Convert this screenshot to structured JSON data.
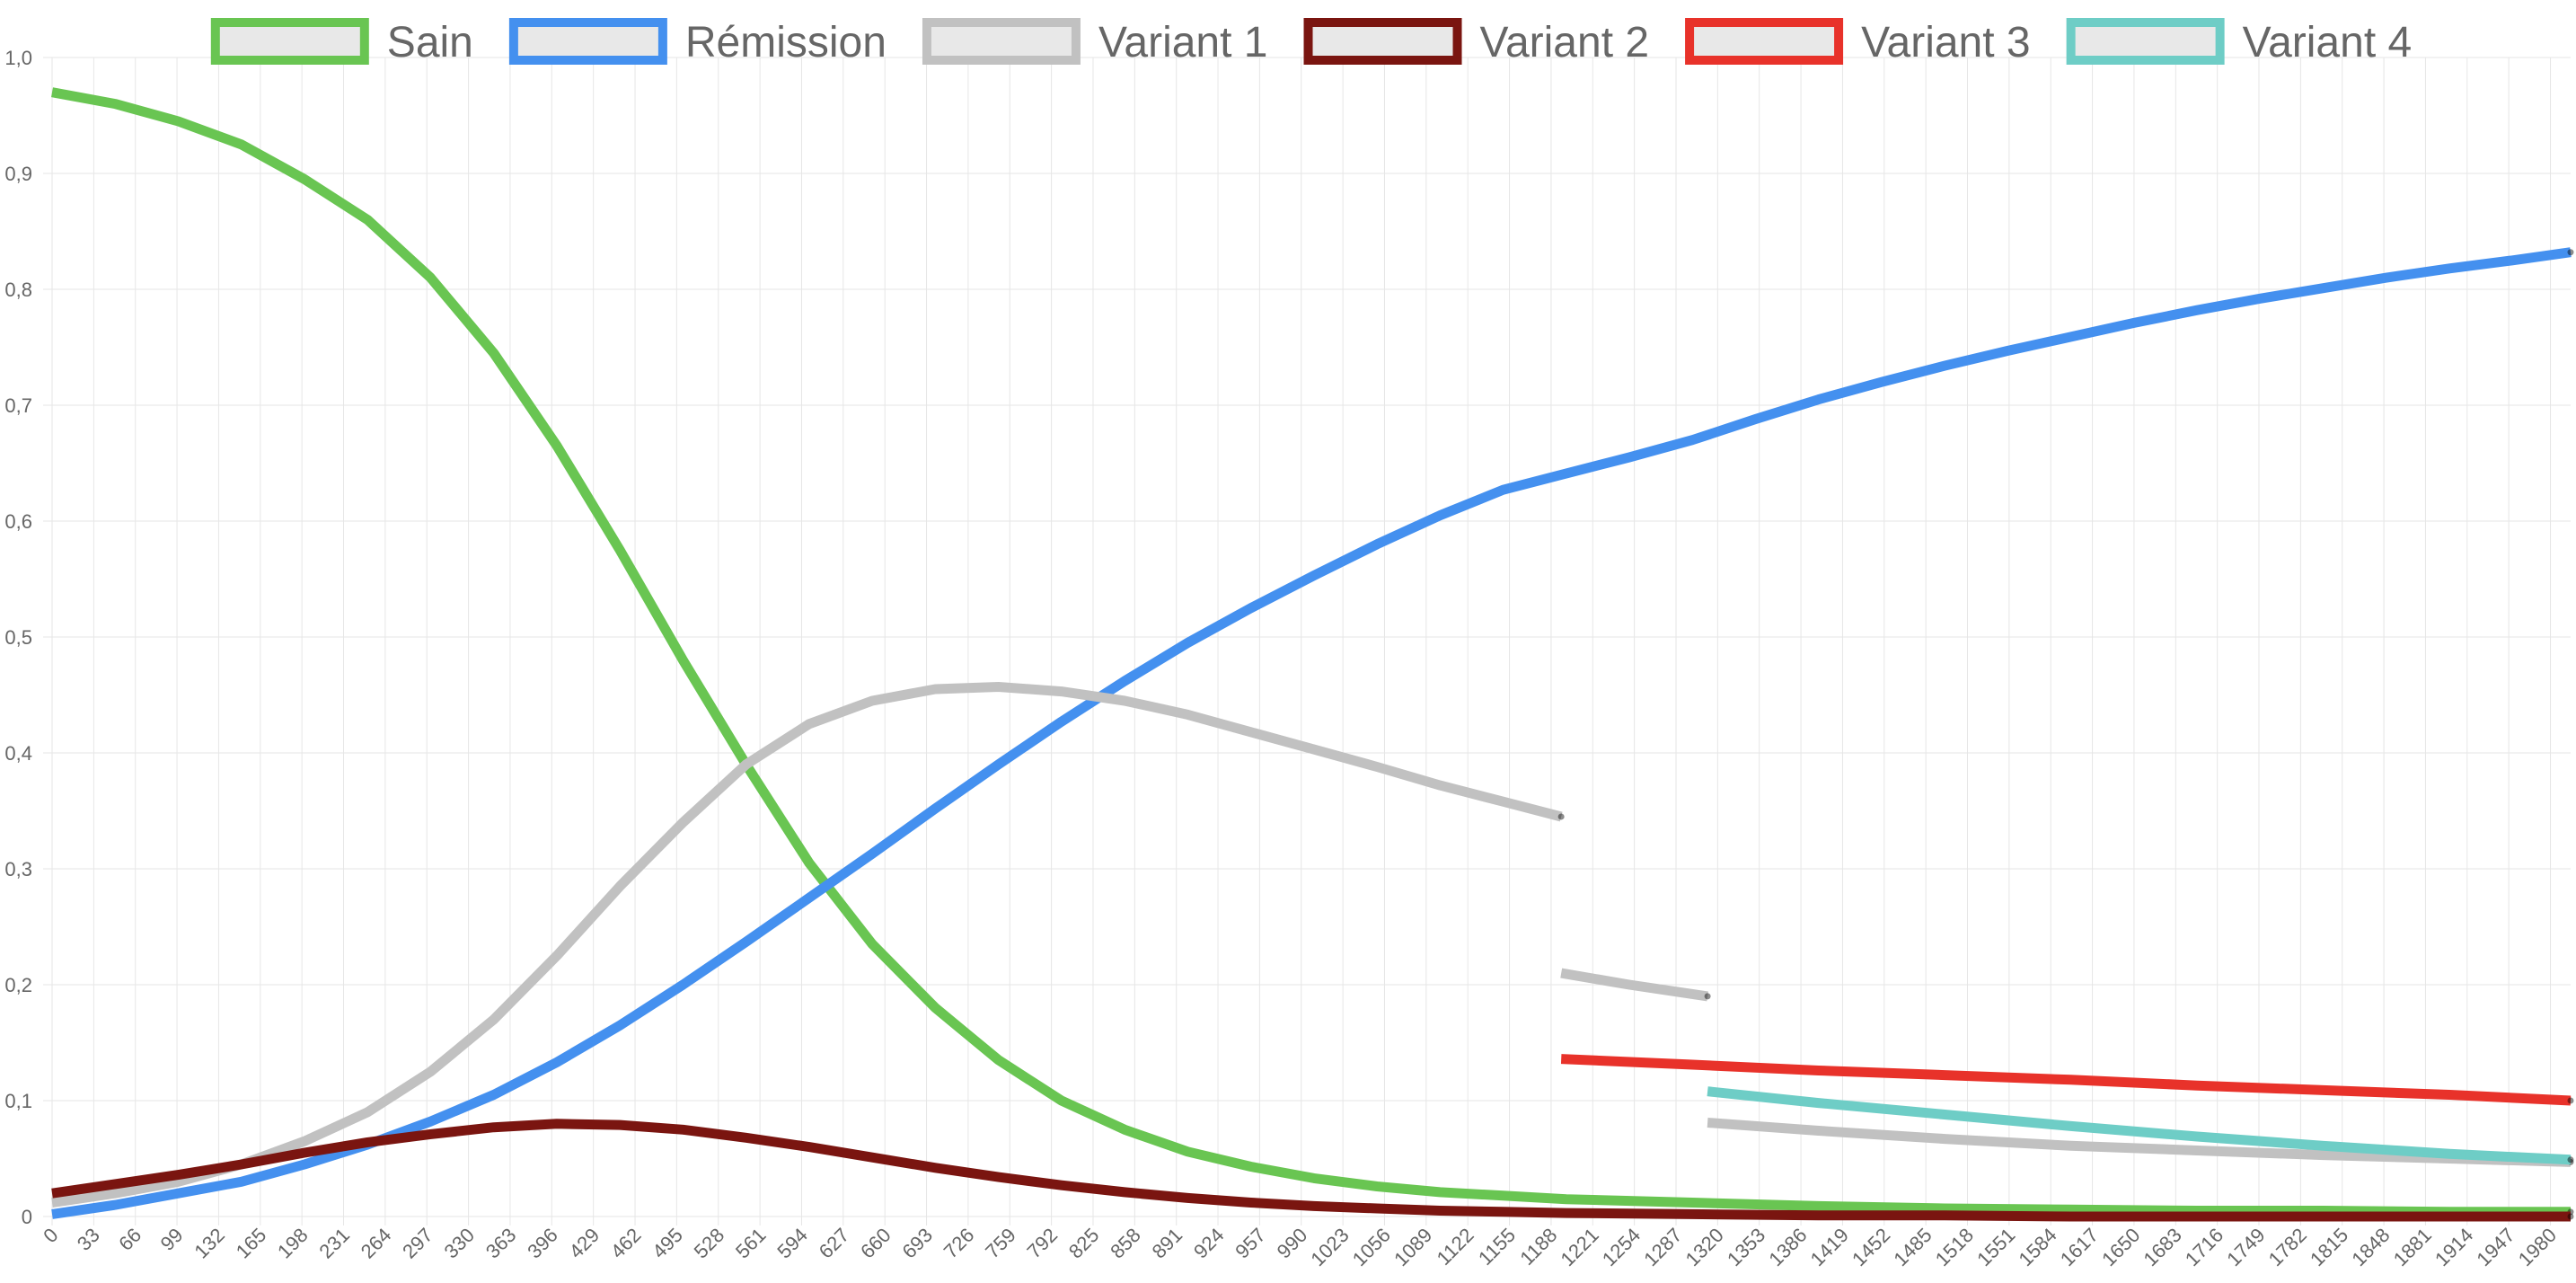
{
  "chart_data": {
    "type": "line",
    "title": "",
    "xlabel": "",
    "ylabel": "",
    "ylim": [
      0,
      1
    ],
    "xlim": [
      0,
      1996
    ],
    "grid": true,
    "legend_position": "top",
    "y_ticks": [
      "0",
      "0,1",
      "0,2",
      "0,3",
      "0,4",
      "0,5",
      "0,6",
      "0,7",
      "0,8",
      "0,9",
      "1,0"
    ],
    "x_ticks": [
      0,
      33,
      66,
      99,
      132,
      165,
      198,
      231,
      264,
      297,
      330,
      363,
      396,
      429,
      462,
      495,
      528,
      561,
      594,
      627,
      660,
      693,
      726,
      759,
      792,
      825,
      858,
      891,
      924,
      957,
      990,
      1023,
      1056,
      1089,
      1122,
      1155,
      1188,
      1221,
      1254,
      1287,
      1320,
      1353,
      1386,
      1419,
      1452,
      1485,
      1518,
      1551,
      1584,
      1617,
      1650,
      1683,
      1716,
      1749,
      1782,
      1815,
      1848,
      1881,
      1914,
      1947,
      1980
    ],
    "series": [
      {
        "name": "Sain",
        "color": "#69c552",
        "segments": [
          [
            [
              0,
              0.97
            ],
            [
              50,
              0.96
            ],
            [
              100,
              0.945
            ],
            [
              150,
              0.925
            ],
            [
              200,
              0.895
            ],
            [
              250,
              0.86
            ],
            [
              300,
              0.81
            ],
            [
              350,
              0.745
            ],
            [
              400,
              0.665
            ],
            [
              450,
              0.575
            ],
            [
              500,
              0.48
            ],
            [
              550,
              0.39
            ],
            [
              600,
              0.305
            ],
            [
              650,
              0.235
            ],
            [
              700,
              0.18
            ],
            [
              750,
              0.135
            ],
            [
              800,
              0.1
            ],
            [
              850,
              0.075
            ],
            [
              900,
              0.056
            ],
            [
              950,
              0.043
            ],
            [
              1000,
              0.033
            ],
            [
              1050,
              0.026
            ],
            [
              1100,
              0.021
            ],
            [
              1150,
              0.018
            ],
            [
              1200,
              0.015
            ],
            [
              1300,
              0.012
            ],
            [
              1400,
              0.009
            ],
            [
              1500,
              0.007
            ],
            [
              1600,
              0.006
            ],
            [
              1700,
              0.005
            ],
            [
              1800,
              0.005
            ],
            [
              1900,
              0.004
            ],
            [
              1996,
              0.004
            ]
          ]
        ]
      },
      {
        "name": "Rémission",
        "color": "#4490ef",
        "segments": [
          [
            [
              0,
              0.002
            ],
            [
              50,
              0.01
            ],
            [
              100,
              0.02
            ],
            [
              150,
              0.03
            ],
            [
              200,
              0.045
            ],
            [
              250,
              0.062
            ],
            [
              300,
              0.082
            ],
            [
              350,
              0.105
            ],
            [
              400,
              0.133
            ],
            [
              450,
              0.165
            ],
            [
              500,
              0.2
            ],
            [
              550,
              0.237
            ],
            [
              600,
              0.275
            ],
            [
              650,
              0.313
            ],
            [
              700,
              0.352
            ],
            [
              750,
              0.39
            ],
            [
              800,
              0.427
            ],
            [
              850,
              0.462
            ],
            [
              900,
              0.495
            ],
            [
              950,
              0.525
            ],
            [
              1000,
              0.553
            ],
            [
              1050,
              0.58
            ],
            [
              1100,
              0.605
            ],
            [
              1150,
              0.627
            ],
            [
              1196,
              0.64
            ],
            [
              1250,
              0.655
            ],
            [
              1300,
              0.67
            ],
            [
              1350,
              0.688
            ],
            [
              1400,
              0.705
            ],
            [
              1450,
              0.72
            ],
            [
              1500,
              0.734
            ],
            [
              1550,
              0.747
            ],
            [
              1600,
              0.759
            ],
            [
              1650,
              0.771
            ],
            [
              1700,
              0.782
            ],
            [
              1750,
              0.792
            ],
            [
              1800,
              0.801
            ],
            [
              1850,
              0.81
            ],
            [
              1900,
              0.818
            ],
            [
              1950,
              0.825
            ],
            [
              1996,
              0.832
            ]
          ]
        ]
      },
      {
        "name": "Variant 1",
        "color": "#c1c1c1",
        "segments": [
          [
            [
              0,
              0.012
            ],
            [
              50,
              0.02
            ],
            [
              100,
              0.03
            ],
            [
              150,
              0.045
            ],
            [
              200,
              0.065
            ],
            [
              250,
              0.09
            ],
            [
              300,
              0.125
            ],
            [
              350,
              0.17
            ],
            [
              400,
              0.225
            ],
            [
              450,
              0.285
            ],
            [
              500,
              0.34
            ],
            [
              550,
              0.39
            ],
            [
              600,
              0.425
            ],
            [
              650,
              0.445
            ],
            [
              700,
              0.455
            ],
            [
              750,
              0.457
            ],
            [
              800,
              0.453
            ],
            [
              850,
              0.445
            ],
            [
              900,
              0.433
            ],
            [
              950,
              0.418
            ],
            [
              1000,
              0.403
            ],
            [
              1050,
              0.388
            ],
            [
              1100,
              0.372
            ],
            [
              1150,
              0.358
            ],
            [
              1196,
              0.345
            ]
          ],
          [
            [
              1196,
              0.21
            ],
            [
              1250,
              0.2
            ],
            [
              1312,
              0.19
            ]
          ],
          [
            [
              1312,
              0.081
            ],
            [
              1400,
              0.074
            ],
            [
              1500,
              0.067
            ],
            [
              1600,
              0.061
            ],
            [
              1700,
              0.057
            ],
            [
              1800,
              0.053
            ],
            [
              1900,
              0.05
            ],
            [
              1996,
              0.047
            ]
          ]
        ]
      },
      {
        "name": "Variant 2",
        "color": "#7a1510",
        "segments": [
          [
            [
              0,
              0.02
            ],
            [
              50,
              0.028
            ],
            [
              100,
              0.036
            ],
            [
              150,
              0.045
            ],
            [
              200,
              0.055
            ],
            [
              250,
              0.064
            ],
            [
              300,
              0.071
            ],
            [
              350,
              0.077
            ],
            [
              400,
              0.08
            ],
            [
              450,
              0.079
            ],
            [
              500,
              0.075
            ],
            [
              550,
              0.068
            ],
            [
              600,
              0.06
            ],
            [
              650,
              0.051
            ],
            [
              700,
              0.042
            ],
            [
              750,
              0.034
            ],
            [
              800,
              0.027
            ],
            [
              850,
              0.021
            ],
            [
              900,
              0.016
            ],
            [
              950,
              0.012
            ],
            [
              1000,
              0.009
            ],
            [
              1050,
              0.007
            ],
            [
              1100,
              0.005
            ],
            [
              1150,
              0.004
            ],
            [
              1200,
              0.003
            ],
            [
              1300,
              0.002
            ],
            [
              1400,
              0.001
            ],
            [
              1500,
              0.001
            ],
            [
              1600,
              0.0
            ],
            [
              1996,
              0.0
            ]
          ]
        ]
      },
      {
        "name": "Variant 3",
        "color": "#e8322a",
        "segments": [
          [
            [
              1196,
              0.136
            ],
            [
              1300,
              0.131
            ],
            [
              1400,
              0.126
            ],
            [
              1500,
              0.122
            ],
            [
              1600,
              0.118
            ],
            [
              1700,
              0.113
            ],
            [
              1800,
              0.109
            ],
            [
              1900,
              0.105
            ],
            [
              1996,
              0.1
            ]
          ]
        ]
      },
      {
        "name": "Variant 4",
        "color": "#6ecdc6",
        "segments": [
          [
            [
              1312,
              0.108
            ],
            [
              1400,
              0.098
            ],
            [
              1500,
              0.088
            ],
            [
              1600,
              0.078
            ],
            [
              1700,
              0.069
            ],
            [
              1800,
              0.061
            ],
            [
              1900,
              0.054
            ],
            [
              1996,
              0.049
            ]
          ]
        ]
      }
    ]
  }
}
